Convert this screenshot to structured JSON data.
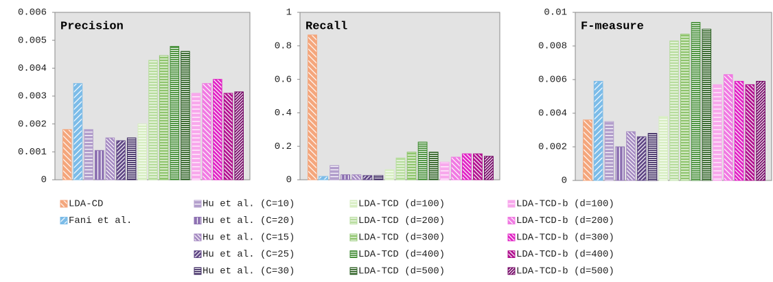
{
  "chart_data": [
    {
      "type": "bar",
      "title": "Precision",
      "ylim": [
        0,
        0.006
      ],
      "yticks": [
        0,
        0.001,
        0.002,
        0.003,
        0.004,
        0.005,
        0.006
      ],
      "series": [
        {
          "name": "LDA-CD",
          "color": "#f4a67c",
          "values": [
            0.0018
          ]
        },
        {
          "name": "Fani et al.",
          "color": "#7cbce8",
          "values": [
            0.00345
          ]
        },
        {
          "name": "Hu et al. (C=10)",
          "color": "#b39fcc",
          "values": [
            0.0018
          ]
        },
        {
          "name": "Hu et al. (C=20)",
          "color": "#8e72b2",
          "values": [
            0.00105
          ]
        },
        {
          "name": "Hu et al. (C=15)",
          "color": "#a58ac2",
          "values": [
            0.0015
          ]
        },
        {
          "name": "Hu et al. (C=25)",
          "color": "#5e4484",
          "values": [
            0.0014
          ]
        },
        {
          "name": "Hu et al. (C=30)",
          "color": "#3e2a62",
          "values": [
            0.0015
          ]
        },
        {
          "name": "LDA-TCD (d=100)",
          "color": "#d6edc0",
          "values": [
            0.002
          ]
        },
        {
          "name": "LDA-TCD (d=200)",
          "color": "#b6dc9c",
          "values": [
            0.00428
          ]
        },
        {
          "name": "LDA-TCD (d=300)",
          "color": "#8ec46c",
          "values": [
            0.00445
          ]
        },
        {
          "name": "LDA-TCD (d=400)",
          "color": "#3e8a30",
          "values": [
            0.00478
          ]
        },
        {
          "name": "LDA-TCD (d=500)",
          "color": "#2a5e20",
          "values": [
            0.0046
          ]
        },
        {
          "name": "LDA-TCD-b (d=100)",
          "color": "#f8a8ec",
          "values": [
            0.0031
          ]
        },
        {
          "name": "LDA-TCD-b (d=200)",
          "color": "#f07ae2",
          "values": [
            0.00345
          ]
        },
        {
          "name": "LDA-TCD-b (d=300)",
          "color": "#e020c4",
          "values": [
            0.0036
          ]
        },
        {
          "name": "LDA-TCD-b (d=400)",
          "color": "#b0108e",
          "values": [
            0.0031
          ]
        },
        {
          "name": "LDA-TCD-b (d=500)",
          "color": "#700062",
          "values": [
            0.00315
          ]
        }
      ]
    },
    {
      "type": "bar",
      "title": "Recall",
      "ylim": [
        0,
        1
      ],
      "yticks": [
        0,
        0.2,
        0.4,
        0.6,
        0.8,
        1
      ],
      "series": [
        {
          "name": "LDA-CD",
          "color": "#f4a67c",
          "values": [
            0.865
          ]
        },
        {
          "name": "Fani et al.",
          "color": "#7cbce8",
          "values": [
            0.02
          ]
        },
        {
          "name": "Hu et al. (C=10)",
          "color": "#b39fcc",
          "values": [
            0.085
          ]
        },
        {
          "name": "Hu et al. (C=20)",
          "color": "#8e72b2",
          "values": [
            0.03
          ]
        },
        {
          "name": "Hu et al. (C=15)",
          "color": "#a58ac2",
          "values": [
            0.03
          ]
        },
        {
          "name": "Hu et al. (C=25)",
          "color": "#5e4484",
          "values": [
            0.025
          ]
        },
        {
          "name": "Hu et al. (C=30)",
          "color": "#3e2a62",
          "values": [
            0.025
          ]
        },
        {
          "name": "LDA-TCD (d=100)",
          "color": "#d6edc0",
          "values": [
            0.06
          ]
        },
        {
          "name": "LDA-TCD (d=200)",
          "color": "#b6dc9c",
          "values": [
            0.13
          ]
        },
        {
          "name": "LDA-TCD (d=300)",
          "color": "#8ec46c",
          "values": [
            0.165
          ]
        },
        {
          "name": "LDA-TCD (d=400)",
          "color": "#3e8a30",
          "values": [
            0.225
          ]
        },
        {
          "name": "LDA-TCD (d=500)",
          "color": "#2a5e20",
          "values": [
            0.165
          ]
        },
        {
          "name": "LDA-TCD-b (d=100)",
          "color": "#f8a8ec",
          "values": [
            0.105
          ]
        },
        {
          "name": "LDA-TCD-b (d=200)",
          "color": "#f07ae2",
          "values": [
            0.135
          ]
        },
        {
          "name": "LDA-TCD-b (d=300)",
          "color": "#e020c4",
          "values": [
            0.155
          ]
        },
        {
          "name": "LDA-TCD-b (d=400)",
          "color": "#b0108e",
          "values": [
            0.155
          ]
        },
        {
          "name": "LDA-TCD-b (d=500)",
          "color": "#700062",
          "values": [
            0.14
          ]
        }
      ]
    },
    {
      "type": "bar",
      "title": "F-measure",
      "ylim": [
        0,
        0.01
      ],
      "yticks": [
        0,
        0.002,
        0.004,
        0.006,
        0.008,
        0.01
      ],
      "series": [
        {
          "name": "LDA-CD",
          "color": "#f4a67c",
          "values": [
            0.0036
          ]
        },
        {
          "name": "Fani et al.",
          "color": "#7cbce8",
          "values": [
            0.0059
          ]
        },
        {
          "name": "Hu et al. (C=10)",
          "color": "#b39fcc",
          "values": [
            0.0035
          ]
        },
        {
          "name": "Hu et al. (C=20)",
          "color": "#8e72b2",
          "values": [
            0.002
          ]
        },
        {
          "name": "Hu et al. (C=15)",
          "color": "#a58ac2",
          "values": [
            0.0029
          ]
        },
        {
          "name": "Hu et al. (C=25)",
          "color": "#5e4484",
          "values": [
            0.0026
          ]
        },
        {
          "name": "Hu et al. (C=30)",
          "color": "#3e2a62",
          "values": [
            0.0028
          ]
        },
        {
          "name": "LDA-TCD (d=100)",
          "color": "#d6edc0",
          "values": [
            0.0038
          ]
        },
        {
          "name": "LDA-TCD (d=200)",
          "color": "#b6dc9c",
          "values": [
            0.0083
          ]
        },
        {
          "name": "LDA-TCD (d=300)",
          "color": "#8ec46c",
          "values": [
            0.0087
          ]
        },
        {
          "name": "LDA-TCD (d=400)",
          "color": "#3e8a30",
          "values": [
            0.0094
          ]
        },
        {
          "name": "LDA-TCD (d=500)",
          "color": "#2a5e20",
          "values": [
            0.009
          ]
        },
        {
          "name": "LDA-TCD-b (d=100)",
          "color": "#f8a8ec",
          "values": [
            0.0057
          ]
        },
        {
          "name": "LDA-TCD-b (d=200)",
          "color": "#f07ae2",
          "values": [
            0.0063
          ]
        },
        {
          "name": "LDA-TCD-b (d=300)",
          "color": "#e020c4",
          "values": [
            0.0059
          ]
        },
        {
          "name": "LDA-TCD-b (d=400)",
          "color": "#b0108e",
          "values": [
            0.0057
          ]
        },
        {
          "name": "LDA-TCD-b (d=500)",
          "color": "#700062",
          "values": [
            0.0059
          ]
        }
      ]
    }
  ]
}
